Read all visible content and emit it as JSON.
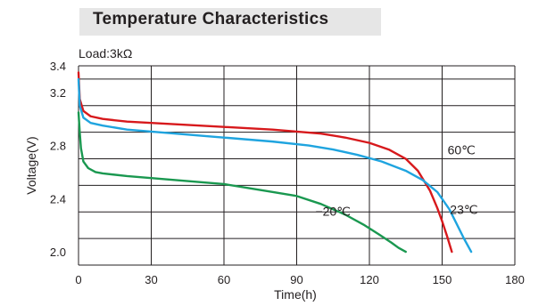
{
  "chart_data": {
    "type": "line",
    "title": "Temperature Characteristics",
    "subtitle": "Load:3kΩ",
    "xlabel": "Time(h)",
    "ylabel": "Voltage(V)",
    "xlim": [
      0,
      180
    ],
    "ylim": [
      1.9,
      3.4
    ],
    "xticks": [
      0,
      30,
      60,
      90,
      120,
      150,
      180
    ],
    "yticks": [
      2.0,
      2.4,
      2.8,
      3.2,
      3.4
    ],
    "grid": true,
    "series": [
      {
        "name": "60℃",
        "color": "#d7191c",
        "x": [
          0,
          0.5,
          2,
          5,
          10,
          20,
          40,
          60,
          80,
          100,
          110,
          120,
          128,
          135,
          140,
          145,
          148,
          150,
          152,
          154
        ],
        "y": [
          3.35,
          3.15,
          3.06,
          3.02,
          3.0,
          2.98,
          2.96,
          2.94,
          2.92,
          2.89,
          2.86,
          2.82,
          2.77,
          2.7,
          2.61,
          2.46,
          2.33,
          2.23,
          2.12,
          2.0
        ]
      },
      {
        "name": "23℃",
        "color": "#1fa4df",
        "x": [
          0,
          0.5,
          2,
          5,
          10,
          20,
          40,
          60,
          80,
          95,
          105,
          115,
          125,
          135,
          142,
          148,
          153,
          156,
          159,
          162
        ],
        "y": [
          3.3,
          3.1,
          3.01,
          2.97,
          2.95,
          2.92,
          2.89,
          2.86,
          2.83,
          2.8,
          2.77,
          2.73,
          2.68,
          2.61,
          2.54,
          2.45,
          2.32,
          2.21,
          2.1,
          2.0
        ]
      },
      {
        "name": "−20℃",
        "color": "#1a9850",
        "x": [
          0,
          0.5,
          1,
          2,
          4,
          7,
          10,
          20,
          40,
          60,
          80,
          90,
          100,
          110,
          118,
          124,
          129,
          132,
          134,
          135
        ],
        "y": [
          3.05,
          2.9,
          2.78,
          2.68,
          2.63,
          2.6,
          2.59,
          2.57,
          2.54,
          2.51,
          2.45,
          2.42,
          2.36,
          2.28,
          2.2,
          2.13,
          2.07,
          2.03,
          2.01,
          2.0
        ]
      }
    ],
    "annotations": [
      "60℃",
      "23℃",
      "−20℃"
    ]
  }
}
